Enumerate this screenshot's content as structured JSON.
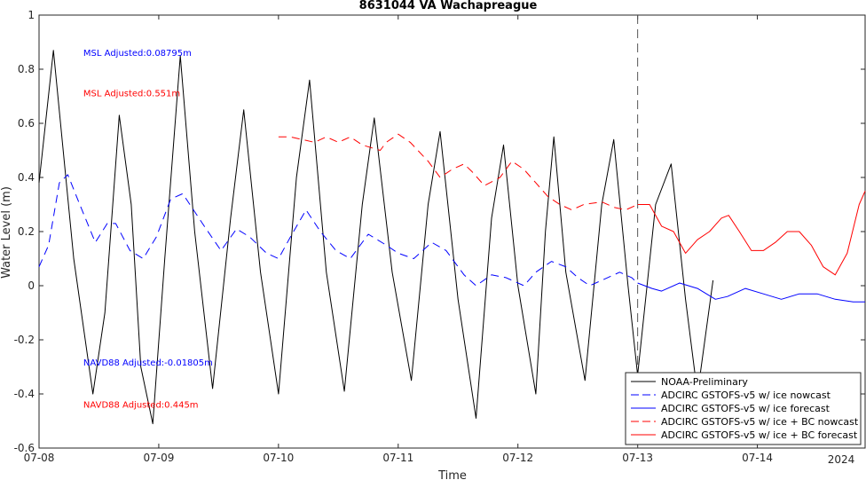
{
  "chart_data": {
    "type": "line",
    "title": "8631044 VA Wachapreague",
    "xlabel": "Time",
    "ylabel": "Water Level (m)",
    "xlim": [
      0,
      6.9
    ],
    "ylim": [
      -0.6,
      1.0
    ],
    "x_ticks": [
      {
        "x": 0,
        "label": "07-08"
      },
      {
        "x": 1,
        "label": "07-09"
      },
      {
        "x": 2,
        "label": "07-10"
      },
      {
        "x": 3,
        "label": "07-11"
      },
      {
        "x": 4,
        "label": "07-12"
      },
      {
        "x": 5,
        "label": "07-13"
      },
      {
        "x": 6,
        "label": "07-14"
      }
    ],
    "y_ticks": [
      -0.6,
      -0.4,
      -0.2,
      0,
      0.2,
      0.4,
      0.6,
      0.8,
      1
    ],
    "year_label": "2024",
    "nowcast_boundary_x": 5.0,
    "grid": false,
    "legend_position": "bottom-right",
    "annotations": [
      {
        "text": "MSL Adjusted:0.08795m",
        "color": "#0000ff",
        "x": 0.37,
        "y": 0.85
      },
      {
        "text": "MSL Adjusted:0.551m",
        "color": "#ff0000",
        "x": 0.37,
        "y": 0.7
      },
      {
        "text": "NAVD88 Adjusted:-0.01805m",
        "color": "#0000ff",
        "x": 0.37,
        "y": -0.295
      },
      {
        "text": "NAVD88 Adjusted:0.445m",
        "color": "#ff0000",
        "x": 0.37,
        "y": -0.45
      }
    ],
    "series": [
      {
        "name": "NOAA-Preliminary",
        "color": "#000000",
        "dash": "solid",
        "points": [
          [
            0,
            0.38
          ],
          [
            0.12,
            0.87
          ],
          [
            0.29,
            0.1
          ],
          [
            0.45,
            -0.4
          ],
          [
            0.55,
            -0.1
          ],
          [
            0.67,
            0.63
          ],
          [
            0.77,
            0.3
          ],
          [
            0.85,
            -0.3
          ],
          [
            0.95,
            -0.51
          ],
          [
            1.05,
            0.1
          ],
          [
            1.18,
            0.85
          ],
          [
            1.3,
            0.2
          ],
          [
            1.45,
            -0.38
          ],
          [
            1.6,
            0.25
          ],
          [
            1.71,
            0.65
          ],
          [
            1.85,
            0.05
          ],
          [
            2.0,
            -0.4
          ],
          [
            2.15,
            0.4
          ],
          [
            2.26,
            0.76
          ],
          [
            2.4,
            0.05
          ],
          [
            2.55,
            -0.39
          ],
          [
            2.7,
            0.3
          ],
          [
            2.8,
            0.62
          ],
          [
            2.95,
            0.05
          ],
          [
            3.11,
            -0.35
          ],
          [
            3.25,
            0.3
          ],
          [
            3.35,
            0.57
          ],
          [
            3.5,
            -0.05
          ],
          [
            3.65,
            -0.49
          ],
          [
            3.78,
            0.25
          ],
          [
            3.88,
            0.52
          ],
          [
            4.0,
            0.0
          ],
          [
            4.15,
            -0.4
          ],
          [
            4.23,
            0.2
          ],
          [
            4.3,
            0.55
          ],
          [
            4.4,
            0.05
          ],
          [
            4.56,
            -0.35
          ],
          [
            4.7,
            0.3
          ],
          [
            4.8,
            0.54
          ],
          [
            4.92,
            0.0
          ],
          [
            5.0,
            -0.33
          ],
          [
            5.15,
            0.3
          ],
          [
            5.28,
            0.45
          ],
          [
            5.4,
            -0.05
          ],
          [
            5.5,
            -0.4
          ],
          [
            5.63,
            0.02
          ]
        ]
      },
      {
        "name": "ADCIRC GSTOFS-v5 w/ ice nowcast",
        "color": "#0000ff",
        "dash": "9,6",
        "points": [
          [
            0,
            0.07
          ],
          [
            0.08,
            0.15
          ],
          [
            0.17,
            0.38
          ],
          [
            0.24,
            0.41
          ],
          [
            0.34,
            0.3
          ],
          [
            0.47,
            0.16
          ],
          [
            0.57,
            0.23
          ],
          [
            0.64,
            0.23
          ],
          [
            0.76,
            0.13
          ],
          [
            0.87,
            0.1
          ],
          [
            0.98,
            0.18
          ],
          [
            1.1,
            0.32
          ],
          [
            1.2,
            0.34
          ],
          [
            1.38,
            0.22
          ],
          [
            1.52,
            0.13
          ],
          [
            1.65,
            0.21
          ],
          [
            1.76,
            0.18
          ],
          [
            1.9,
            0.12
          ],
          [
            2.0,
            0.1
          ],
          [
            2.1,
            0.18
          ],
          [
            2.23,
            0.28
          ],
          [
            2.35,
            0.2
          ],
          [
            2.48,
            0.13
          ],
          [
            2.6,
            0.1
          ],
          [
            2.75,
            0.19
          ],
          [
            2.9,
            0.15
          ],
          [
            3.0,
            0.12
          ],
          [
            3.13,
            0.1
          ],
          [
            3.28,
            0.16
          ],
          [
            3.4,
            0.13
          ],
          [
            3.55,
            0.04
          ],
          [
            3.65,
            0.0
          ],
          [
            3.78,
            0.04
          ],
          [
            3.9,
            0.03
          ],
          [
            4.05,
            0.0
          ],
          [
            4.15,
            0.05
          ],
          [
            4.28,
            0.09
          ],
          [
            4.4,
            0.07
          ],
          [
            4.5,
            0.03
          ],
          [
            4.6,
            0.0
          ],
          [
            4.75,
            0.03
          ],
          [
            4.85,
            0.05
          ],
          [
            4.95,
            0.03
          ],
          [
            5.0,
            0.01
          ]
        ]
      },
      {
        "name": "ADCIRC GSTOFS-v5 w/ ice forecast",
        "color": "#0000ff",
        "dash": "solid",
        "points": [
          [
            5.0,
            0.01
          ],
          [
            5.12,
            -0.01
          ],
          [
            5.2,
            -0.02
          ],
          [
            5.35,
            0.01
          ],
          [
            5.5,
            -0.01
          ],
          [
            5.65,
            -0.05
          ],
          [
            5.75,
            -0.04
          ],
          [
            5.9,
            -0.01
          ],
          [
            6.05,
            -0.03
          ],
          [
            6.2,
            -0.05
          ],
          [
            6.35,
            -0.03
          ],
          [
            6.5,
            -0.03
          ],
          [
            6.65,
            -0.05
          ],
          [
            6.8,
            -0.06
          ],
          [
            6.9,
            -0.06
          ]
        ]
      },
      {
        "name": "ADCIRC GSTOFS-v5 w/ ice + BC nowcast",
        "color": "#ff0000",
        "dash": "9,6",
        "points": [
          [
            2.0,
            0.55
          ],
          [
            2.1,
            0.55
          ],
          [
            2.2,
            0.54
          ],
          [
            2.3,
            0.53
          ],
          [
            2.4,
            0.55
          ],
          [
            2.5,
            0.53
          ],
          [
            2.6,
            0.55
          ],
          [
            2.7,
            0.52
          ],
          [
            2.85,
            0.5
          ],
          [
            2.9,
            0.53
          ],
          [
            3.0,
            0.56
          ],
          [
            3.1,
            0.53
          ],
          [
            3.25,
            0.46
          ],
          [
            3.35,
            0.4
          ],
          [
            3.45,
            0.43
          ],
          [
            3.55,
            0.45
          ],
          [
            3.62,
            0.42
          ],
          [
            3.72,
            0.37
          ],
          [
            3.85,
            0.4
          ],
          [
            3.95,
            0.46
          ],
          [
            4.05,
            0.43
          ],
          [
            4.15,
            0.38
          ],
          [
            4.25,
            0.33
          ],
          [
            4.35,
            0.3
          ],
          [
            4.45,
            0.28
          ],
          [
            4.55,
            0.3
          ],
          [
            4.7,
            0.31
          ],
          [
            4.8,
            0.29
          ],
          [
            4.9,
            0.28
          ],
          [
            5.0,
            0.3
          ]
        ]
      },
      {
        "name": "ADCIRC GSTOFS-v5 w/ ice + BC forecast",
        "color": "#ff0000",
        "dash": "solid",
        "points": [
          [
            5.0,
            0.3
          ],
          [
            5.1,
            0.3
          ],
          [
            5.2,
            0.22
          ],
          [
            5.3,
            0.2
          ],
          [
            5.4,
            0.12
          ],
          [
            5.5,
            0.17
          ],
          [
            5.6,
            0.2
          ],
          [
            5.7,
            0.25
          ],
          [
            5.76,
            0.26
          ],
          [
            5.85,
            0.2
          ],
          [
            5.95,
            0.13
          ],
          [
            6.05,
            0.13
          ],
          [
            6.15,
            0.16
          ],
          [
            6.25,
            0.2
          ],
          [
            6.35,
            0.2
          ],
          [
            6.45,
            0.15
          ],
          [
            6.55,
            0.07
          ],
          [
            6.65,
            0.04
          ],
          [
            6.75,
            0.12
          ],
          [
            6.85,
            0.3
          ],
          [
            6.9,
            0.35
          ]
        ]
      }
    ]
  }
}
